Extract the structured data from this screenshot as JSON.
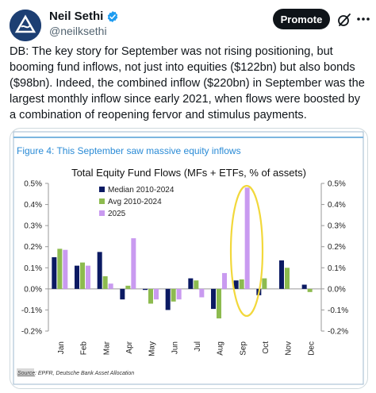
{
  "author": {
    "name": "Neil Sethi",
    "handle": "@neilksethi",
    "verified_color": "#1d9bf0"
  },
  "actions": {
    "promote_label": "Promote",
    "grok_icon": "grok-icon",
    "more_icon": "more-icon"
  },
  "tweet": {
    "text": "DB: The key story for September was not rising positioning, but booming fund inflows, not just into equities ($122bn) but also bonds ($98bn). Indeed, the combined inflow ($220bn) in September was the largest monthly inflow since early 2021, when flows were boosted by a combination of reopening fervor and stimulus payments."
  },
  "figure": {
    "caption": "Figure 4: This September saw massive equity inflows",
    "source_label": "Source",
    "source_text": ": EPFR, Deutsche Bank Asset Allocation",
    "highlight_color": "#f2d83b"
  },
  "chart_data": {
    "type": "bar",
    "title": "Total Equity Fund Flows (MFs + ETFs, % of assets)",
    "categories": [
      "Jan",
      "Feb",
      "Mar",
      "Apr",
      "May",
      "Jun",
      "Jul",
      "Aug",
      "Sep",
      "Oct",
      "Nov",
      "Dec"
    ],
    "series": [
      {
        "name": "Median 2010-2024",
        "color": "#0b1a63",
        "values": [
          0.15,
          0.11,
          0.175,
          -0.05,
          -0.005,
          -0.1,
          0.05,
          -0.095,
          0.04,
          -0.03,
          0.135,
          0.02
        ]
      },
      {
        "name": "Avg 2010-2024",
        "color": "#8dbb4f",
        "values": [
          0.19,
          0.125,
          0.06,
          0.015,
          -0.07,
          -0.06,
          0.04,
          -0.14,
          0.045,
          0.05,
          0.1,
          -0.015
        ]
      },
      {
        "name": "2025",
        "color": "#c99af0",
        "values": [
          0.185,
          0.11,
          0.025,
          0.24,
          -0.05,
          -0.05,
          -0.04,
          0.075,
          0.48,
          null,
          null,
          null
        ]
      }
    ],
    "ylim": [
      -0.2,
      0.5
    ],
    "yticks_left": [
      "0.5%",
      "0.4%",
      "0.3%",
      "0.2%",
      "0.1%",
      "0.0%",
      "-0.1%",
      "-0.2%"
    ],
    "yticks_right": [
      "0.5%",
      "0.4%",
      "0.3%",
      "0.2%",
      "0.1%",
      "0.0%",
      "-0.1%",
      "-0.2%"
    ],
    "ytick_values": [
      0.5,
      0.4,
      0.3,
      0.2,
      0.1,
      0.0,
      -0.1,
      -0.2
    ],
    "legend_position": "top-left",
    "grid": false
  }
}
